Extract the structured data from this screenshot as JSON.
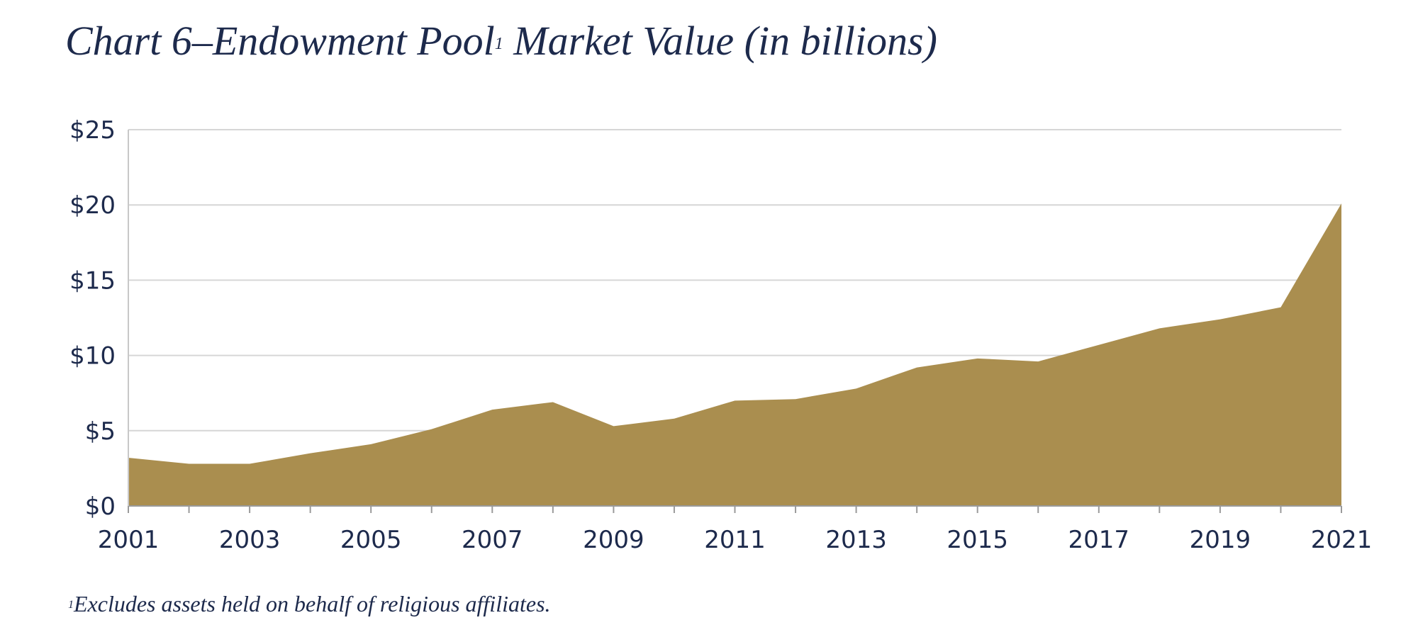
{
  "chart_data": {
    "type": "area",
    "title_main": "Chart 6–Endowment Pool",
    "title_sup": "1",
    "title_rest": " Market Value (in billions)",
    "footnote_sup": "1",
    "footnote_text": "Excludes assets held on behalf of religious affiliates.",
    "x": [
      2001,
      2002,
      2003,
      2004,
      2005,
      2006,
      2007,
      2008,
      2009,
      2010,
      2011,
      2012,
      2013,
      2014,
      2015,
      2016,
      2017,
      2018,
      2019,
      2020,
      2021
    ],
    "x_tick_labels": [
      "2001",
      "2003",
      "2005",
      "2007",
      "2009",
      "2011",
      "2013",
      "2015",
      "2017",
      "2019",
      "2021"
    ],
    "x_tick_values": [
      2001,
      2003,
      2005,
      2007,
      2009,
      2011,
      2013,
      2015,
      2017,
      2019,
      2021
    ],
    "series": [
      {
        "values": [
          3.2,
          2.8,
          2.8,
          3.5,
          4.1,
          5.1,
          6.4,
          6.9,
          5.3,
          5.8,
          7.0,
          7.1,
          7.8,
          9.2,
          9.8,
          9.6,
          10.7,
          11.8,
          12.4,
          13.2,
          20.1
        ]
      }
    ],
    "y_tick_labels": [
      "$0",
      "$5",
      "$10",
      "$15",
      "$20",
      "$25"
    ],
    "y_tick_values": [
      0,
      5,
      10,
      15,
      20,
      25
    ],
    "ylim": [
      0,
      25
    ],
    "xlim": [
      2001,
      2021
    ],
    "grid": "horizontal",
    "colors": {
      "fill": "#aa8e4f",
      "grid": "#d6d6d6",
      "text": "#1d2a4c"
    }
  }
}
